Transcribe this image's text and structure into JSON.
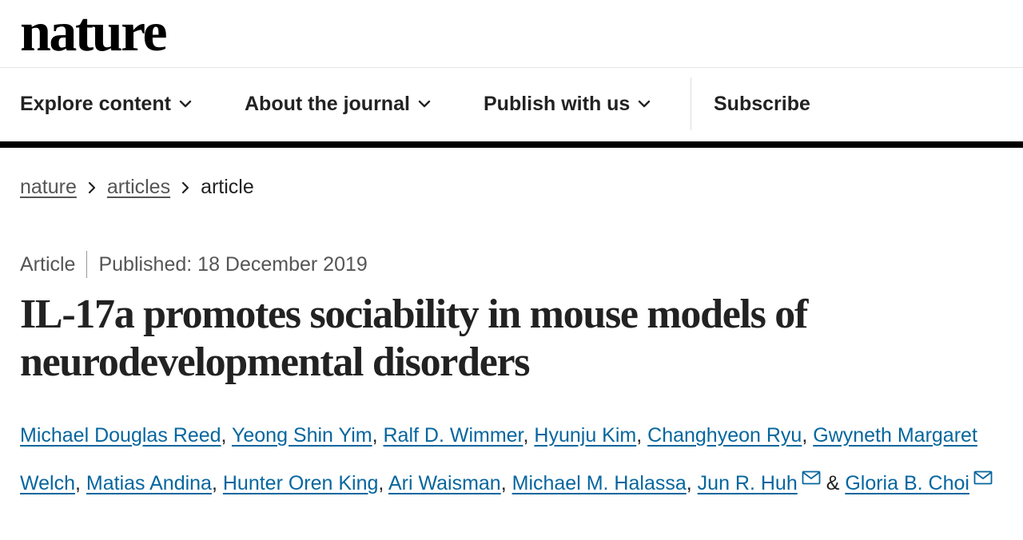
{
  "site": {
    "brand": "nature"
  },
  "nav": {
    "items": [
      {
        "label": "Explore content",
        "icon": "chevron-down-icon"
      },
      {
        "label": "About the journal",
        "icon": "chevron-down-icon"
      },
      {
        "label": "Publish with us",
        "icon": "chevron-down-icon"
      }
    ],
    "subscribe": "Subscribe"
  },
  "breadcrumb": {
    "items": [
      "nature",
      "articles"
    ],
    "current": "article"
  },
  "article": {
    "type": "Article",
    "published": "Published: 18 December 2019",
    "title_line1": "IL-17a promotes sociability in mouse models of",
    "title_line2": "neurodevelopmental disorders",
    "authors": [
      "Michael Douglas Reed",
      "Yeong Shin Yim",
      "Ralf D. Wimmer",
      "Hyunju Kim",
      "Changhyeon Ryu",
      "Gwyneth Margaret Welch",
      "Matias Andina",
      "Hunter Oren King",
      "Ari Waisman",
      "Michael M. Halassa",
      "Jun R. Huh",
      "Gloria B. Choi"
    ],
    "author_separator": ",",
    "author_conjunction": "&"
  },
  "colors": {
    "link": "#06669e",
    "text": "#222222",
    "muted": "#555555"
  }
}
